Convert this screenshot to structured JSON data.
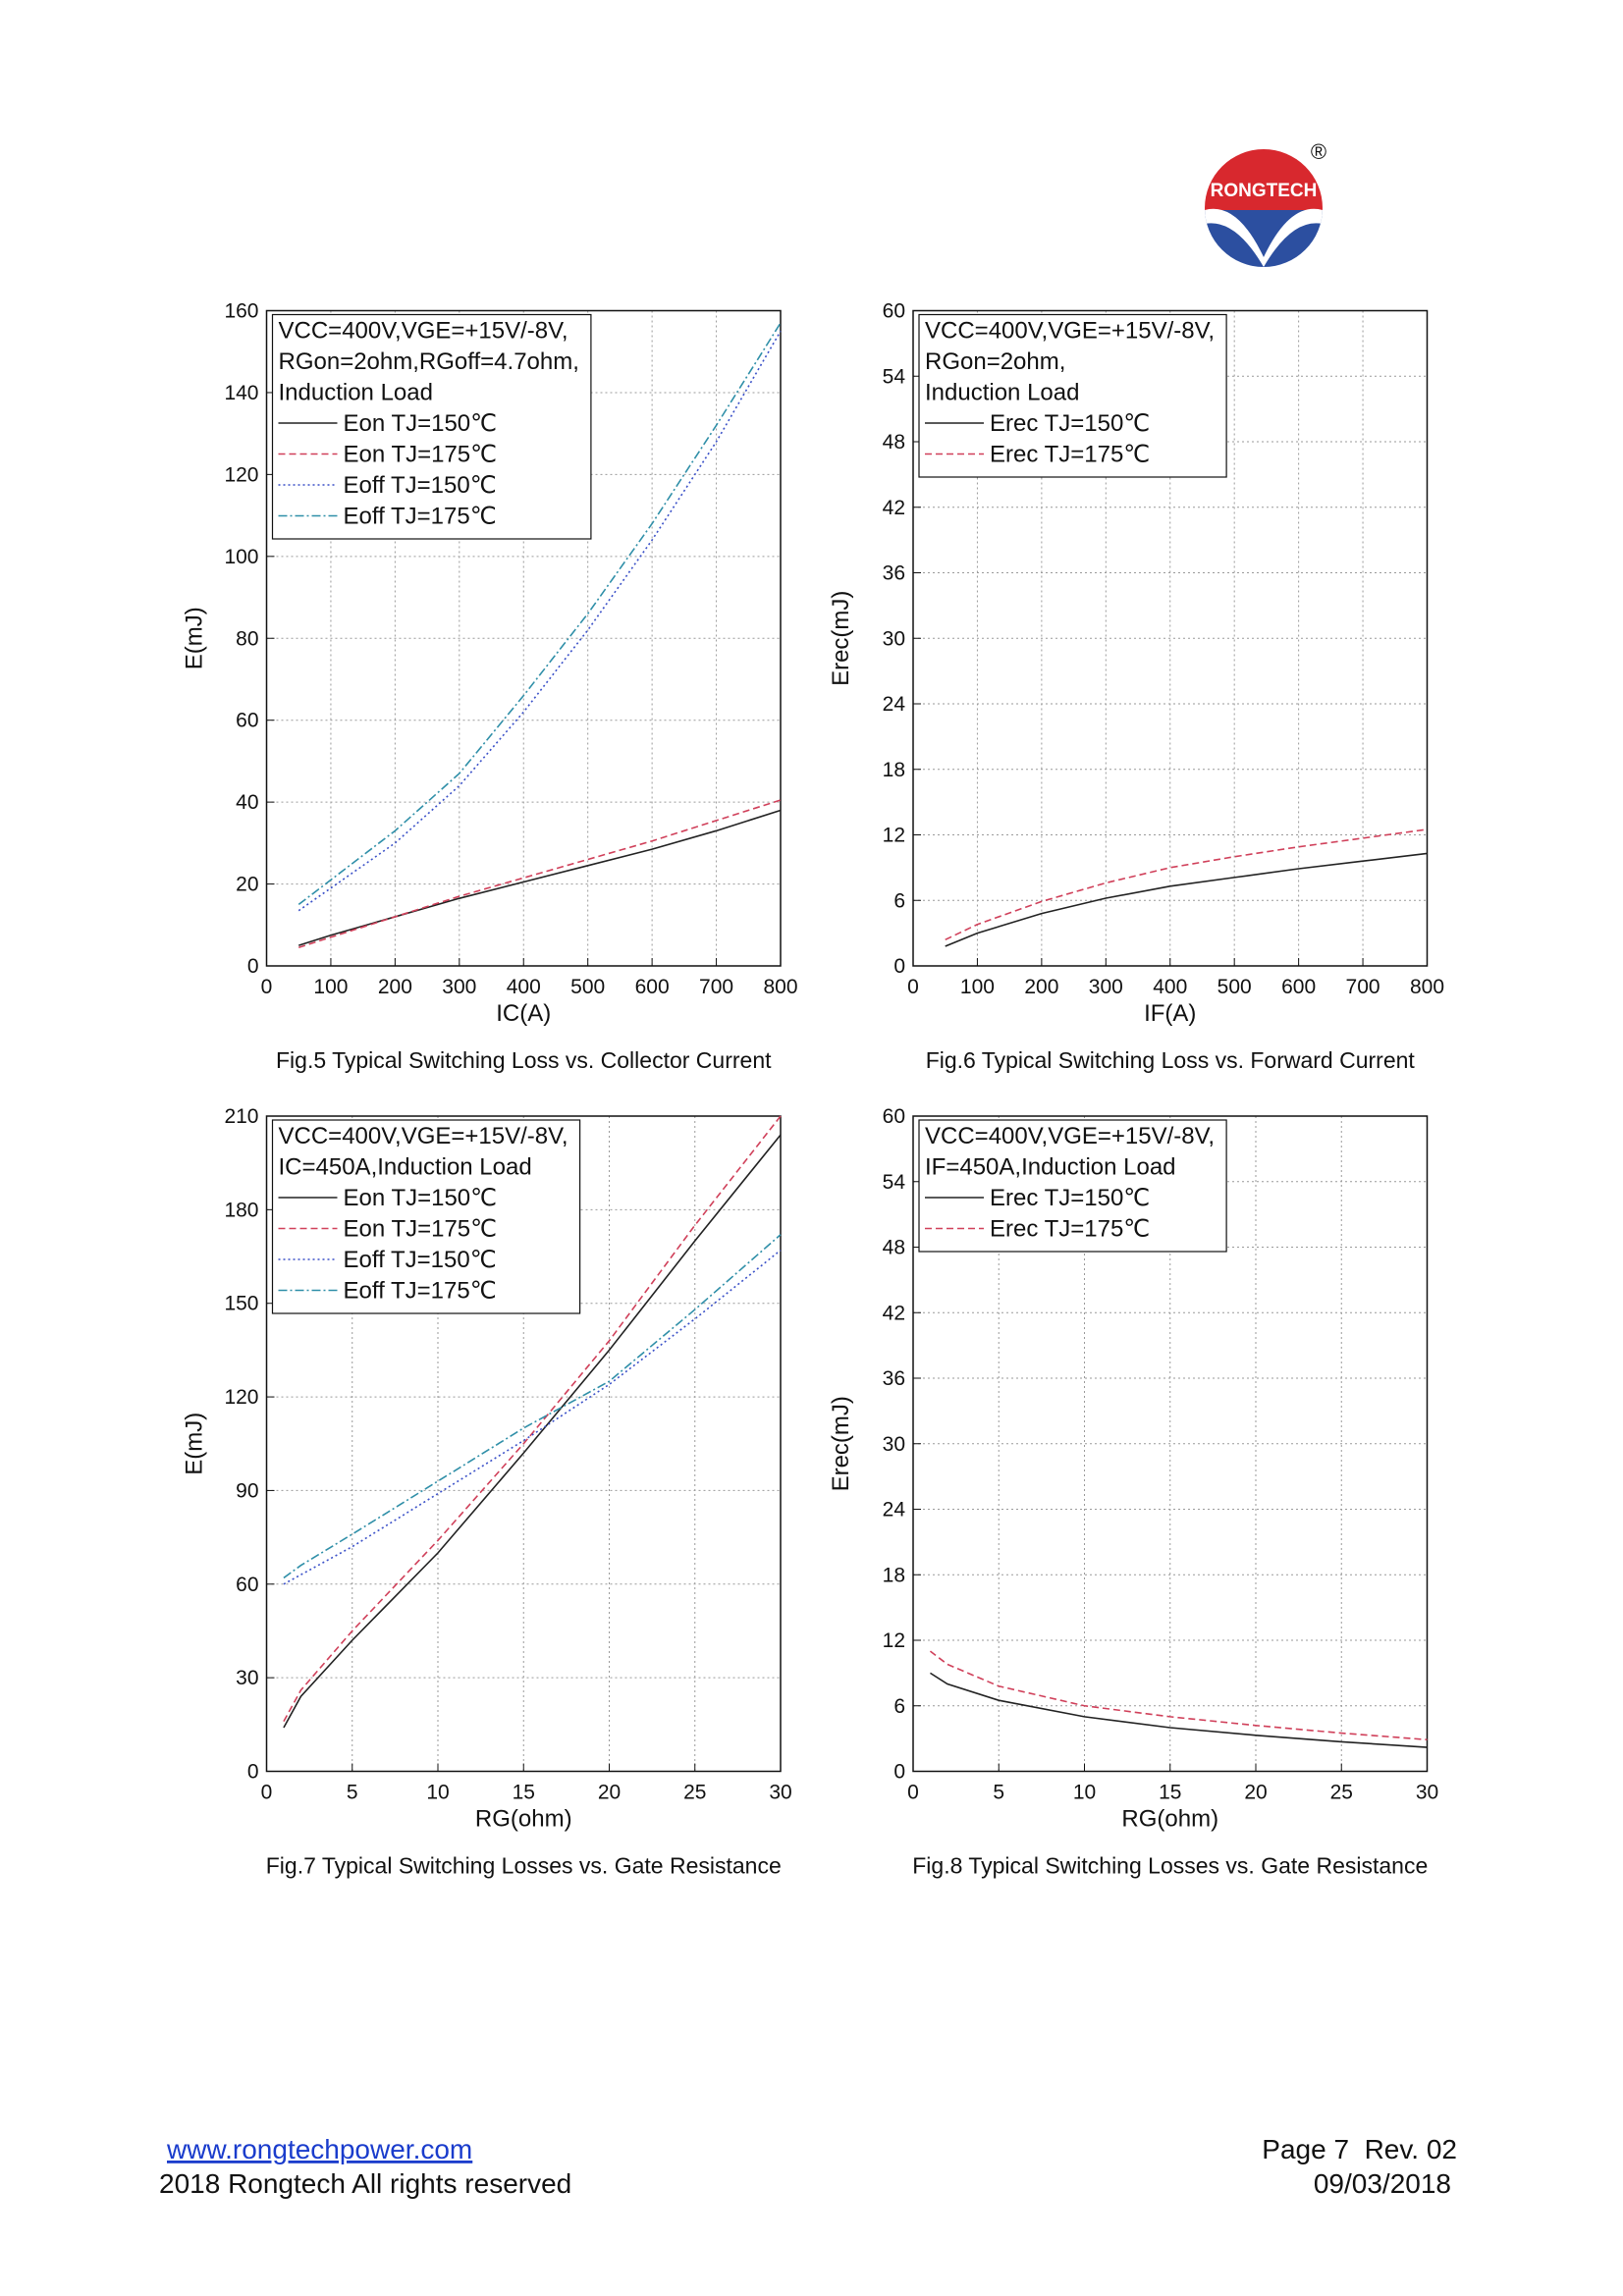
{
  "logo": {
    "text": "RONGTECH",
    "mark": "®"
  },
  "footer": {
    "link": "www.rongtechpower.com",
    "copyright": "2018 Rongtech All rights reserved",
    "page": "Page 7  Rev. 02",
    "date": "09/03/2018"
  },
  "chart_data": [
    {
      "type": "line",
      "caption": "Fig.5 Typical Switching Loss vs. Collector Current",
      "x_label": "IC(A)",
      "y_label": "E(mJ)",
      "annotations": [
        "VCC=400V,VGE=+15V/-8V,",
        "RGon=2ohm,RGoff=4.7ohm,",
        "Induction Load"
      ],
      "x": [
        50,
        100,
        200,
        300,
        400,
        500,
        600,
        700,
        800
      ],
      "series": [
        {
          "name": "Eon TJ=150℃",
          "color": "#222222",
          "style": "solid",
          "values": [
            5,
            7.5,
            12,
            16.5,
            20.5,
            24.5,
            28.5,
            33,
            38
          ]
        },
        {
          "name": "Eon TJ=175℃",
          "color": "#d0405a",
          "style": "dash",
          "values": [
            4.5,
            7,
            12,
            17,
            21.5,
            26,
            30.5,
            35.5,
            40.5
          ]
        },
        {
          "name": "Eoff TJ=150℃",
          "color": "#3a50c8",
          "style": "dot",
          "values": [
            13.5,
            19,
            30,
            44,
            62,
            82,
            104,
            128,
            155
          ]
        },
        {
          "name": "Eoff TJ=175℃",
          "color": "#2f8fa8",
          "style": "dashdot",
          "values": [
            15,
            21,
            33,
            47,
            66,
            86,
            108,
            132,
            157
          ]
        }
      ],
      "xlim": [
        0,
        800
      ],
      "xticks": [
        0,
        100,
        200,
        300,
        400,
        500,
        600,
        700,
        800
      ],
      "ylim": [
        0,
        160
      ],
      "yticks": [
        0,
        20,
        40,
        60,
        80,
        100,
        120,
        140,
        160
      ],
      "grid": true
    },
    {
      "type": "line",
      "caption": "Fig.6 Typical Switching Loss vs. Forward Current",
      "x_label": "IF(A)",
      "y_label": "Erec(mJ)",
      "annotations": [
        "VCC=400V,VGE=+15V/-8V,",
        "RGon=2ohm,",
        "Induction Load"
      ],
      "x": [
        50,
        100,
        200,
        300,
        400,
        500,
        600,
        700,
        800
      ],
      "series": [
        {
          "name": "Erec TJ=150℃",
          "color": "#222222",
          "style": "solid",
          "values": [
            1.8,
            3,
            4.8,
            6.2,
            7.3,
            8.1,
            8.9,
            9.6,
            10.3
          ]
        },
        {
          "name": "Erec TJ=175℃",
          "color": "#d0405a",
          "style": "dash",
          "values": [
            2.4,
            3.8,
            5.9,
            7.6,
            9,
            10,
            10.9,
            11.7,
            12.5
          ]
        }
      ],
      "xlim": [
        0,
        800
      ],
      "xticks": [
        0,
        100,
        200,
        300,
        400,
        500,
        600,
        700,
        800
      ],
      "ylim": [
        0,
        60
      ],
      "yticks": [
        0,
        6,
        12,
        18,
        24,
        30,
        36,
        42,
        48,
        54,
        60
      ],
      "grid": true
    },
    {
      "type": "line",
      "caption": "Fig.7 Typical Switching Losses vs. Gate Resistance",
      "x_label": "RG(ohm)",
      "y_label": "E(mJ)",
      "annotations": [
        "VCC=400V,VGE=+15V/-8V,",
        "IC=450A,Induction Load"
      ],
      "x": [
        1,
        2,
        5,
        10,
        15,
        20,
        25,
        30
      ],
      "series": [
        {
          "name": "Eon TJ=150℃",
          "color": "#222222",
          "style": "solid",
          "values": [
            14,
            24,
            42,
            70,
            102,
            135,
            170,
            204
          ]
        },
        {
          "name": "Eon TJ=175℃",
          "color": "#d0405a",
          "style": "dash",
          "values": [
            16,
            26,
            45,
            74,
            105,
            138,
            175,
            210
          ]
        },
        {
          "name": "Eoff TJ=150℃",
          "color": "#3a50c8",
          "style": "dot",
          "values": [
            60,
            63,
            72,
            89,
            106,
            124,
            145,
            167
          ]
        },
        {
          "name": "Eoff TJ=175℃",
          "color": "#2f8fa8",
          "style": "dashdot",
          "values": [
            62,
            66,
            76,
            93,
            110,
            125,
            148,
            172
          ]
        }
      ],
      "xlim": [
        0,
        30
      ],
      "xticks": [
        0,
        5,
        10,
        15,
        20,
        25,
        30
      ],
      "ylim": [
        0,
        210
      ],
      "yticks": [
        0,
        30,
        60,
        90,
        120,
        150,
        180,
        210
      ],
      "grid": true
    },
    {
      "type": "line",
      "caption": "Fig.8 Typical Switching Losses vs. Gate Resistance",
      "x_label": "RG(ohm)",
      "y_label": "Erec(mJ)",
      "annotations": [
        "VCC=400V,VGE=+15V/-8V,",
        "IF=450A,Induction Load"
      ],
      "x": [
        1,
        2,
        5,
        10,
        15,
        20,
        25,
        30
      ],
      "series": [
        {
          "name": "Erec TJ=150℃",
          "color": "#222222",
          "style": "solid",
          "values": [
            9,
            8,
            6.5,
            5,
            4,
            3.3,
            2.7,
            2.2
          ]
        },
        {
          "name": "Erec TJ=175℃",
          "color": "#d0405a",
          "style": "dash",
          "values": [
            11,
            9.8,
            7.8,
            6,
            5,
            4.2,
            3.5,
            2.9
          ]
        }
      ],
      "xlim": [
        0,
        30
      ],
      "xticks": [
        0,
        5,
        10,
        15,
        20,
        25,
        30
      ],
      "ylim": [
        0,
        60
      ],
      "yticks": [
        0,
        6,
        12,
        18,
        24,
        30,
        36,
        42,
        48,
        54,
        60
      ],
      "grid": true
    }
  ]
}
